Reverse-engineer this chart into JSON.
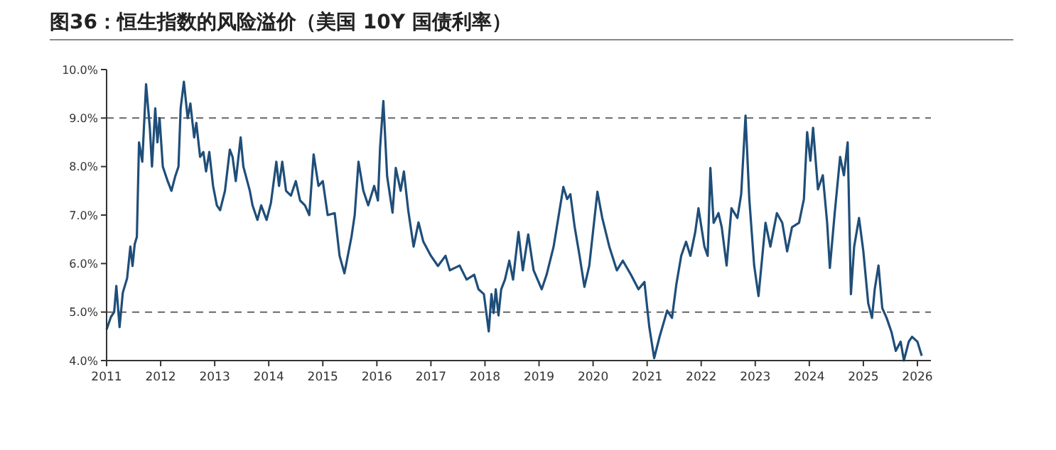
{
  "chart_data": {
    "type": "line",
    "title": "图36：恒生指数的风险溢价（美国 10Y 国债利率）",
    "series": [
      {
        "color": "#1f4e79",
        "x": [
          2011.0,
          2011.08,
          2011.14,
          2011.18,
          2011.24,
          2011.3,
          2011.38,
          2011.44,
          2011.48,
          2011.52,
          2011.56,
          2011.6,
          2011.66,
          2011.73,
          2011.8,
          2011.84,
          2011.9,
          2011.94,
          2011.98,
          2012.04,
          2012.13,
          2012.2,
          2012.27,
          2012.33,
          2012.37,
          2012.43,
          2012.5,
          2012.55,
          2012.62,
          2012.66,
          2012.73,
          2012.79,
          2012.84,
          2012.9,
          2012.97,
          2013.04,
          2013.1,
          2013.19,
          2013.28,
          2013.33,
          2013.39,
          2013.48,
          2013.53,
          2013.65,
          2013.7,
          2013.79,
          2013.86,
          2013.96,
          2014.04,
          2014.14,
          2014.19,
          2014.25,
          2014.32,
          2014.41,
          2014.5,
          2014.58,
          2014.67,
          2014.75,
          2014.83,
          2014.92,
          2015.0,
          2015.09,
          2015.22,
          2015.31,
          2015.4,
          2015.53,
          2015.59,
          2015.66,
          2015.75,
          2015.84,
          2015.95,
          2016.02,
          2016.06,
          2016.12,
          2016.19,
          2016.29,
          2016.35,
          2016.44,
          2016.5,
          2016.58,
          2016.68,
          2016.77,
          2016.86,
          2017.0,
          2017.13,
          2017.27,
          2017.35,
          2017.53,
          2017.66,
          2017.8,
          2017.88,
          2017.98,
          2018.07,
          2018.12,
          2018.16,
          2018.2,
          2018.25,
          2018.3,
          2018.37,
          2018.45,
          2018.52,
          2018.62,
          2018.7,
          2018.8,
          2018.9,
          2019.05,
          2019.14,
          2019.27,
          2019.45,
          2019.52,
          2019.58,
          2019.66,
          2019.75,
          2019.84,
          2019.93,
          2020.08,
          2020.17,
          2020.3,
          2020.44,
          2020.55,
          2020.7,
          2020.84,
          2020.95,
          2021.04,
          2021.13,
          2021.23,
          2021.37,
          2021.46,
          2021.54,
          2021.63,
          2021.72,
          2021.8,
          2021.89,
          2021.95,
          2022.06,
          2022.12,
          2022.17,
          2022.23,
          2022.32,
          2022.38,
          2022.47,
          2022.56,
          2022.67,
          2022.74,
          2022.82,
          2022.89,
          2022.98,
          2023.06,
          2023.19,
          2023.28,
          2023.4,
          2023.5,
          2023.59,
          2023.68,
          2023.81,
          2023.9,
          2023.96,
          2024.02,
          2024.07,
          2024.16,
          2024.25,
          2024.33,
          2024.38,
          2024.47,
          2024.57,
          2024.64,
          2024.71,
          2024.77,
          2024.83,
          2024.92,
          2025.0,
          2025.09,
          2025.16,
          2025.21,
          2025.28,
          2025.35,
          2025.43,
          2025.52,
          2025.6,
          2025.69,
          2025.75,
          2025.84,
          2025.9,
          2026.0,
          2026.08
        ],
        "values": [
          4.64,
          4.9,
          5.0,
          5.54,
          4.69,
          5.4,
          5.7,
          6.35,
          5.95,
          6.4,
          6.55,
          8.5,
          8.1,
          9.7,
          8.8,
          8.0,
          9.2,
          8.5,
          9.0,
          8.0,
          7.7,
          7.5,
          7.8,
          8.0,
          9.2,
          9.75,
          9.0,
          9.3,
          8.6,
          8.9,
          8.2,
          8.3,
          7.9,
          8.3,
          7.6,
          7.2,
          7.1,
          7.5,
          8.35,
          8.2,
          7.7,
          8.6,
          8.0,
          7.5,
          7.2,
          6.9,
          7.2,
          6.9,
          7.25,
          8.1,
          7.6,
          8.1,
          7.5,
          7.4,
          7.7,
          7.3,
          7.2,
          7.0,
          8.25,
          7.6,
          7.7,
          7.0,
          7.04,
          6.16,
          5.8,
          6.55,
          7.0,
          8.1,
          7.5,
          7.2,
          7.6,
          7.3,
          8.4,
          9.35,
          7.8,
          7.05,
          7.97,
          7.5,
          7.9,
          7.1,
          6.35,
          6.85,
          6.45,
          6.16,
          5.95,
          6.16,
          5.86,
          5.96,
          5.67,
          5.77,
          5.47,
          5.37,
          4.6,
          5.37,
          4.98,
          5.47,
          4.93,
          5.47,
          5.67,
          6.06,
          5.67,
          6.65,
          5.86,
          6.6,
          5.86,
          5.47,
          5.77,
          6.35,
          7.58,
          7.33,
          7.43,
          6.75,
          6.16,
          5.52,
          5.96,
          7.48,
          6.94,
          6.35,
          5.86,
          6.06,
          5.77,
          5.47,
          5.62,
          4.69,
          4.05,
          4.49,
          5.03,
          4.88,
          5.57,
          6.16,
          6.45,
          6.16,
          6.65,
          7.14,
          6.35,
          6.16,
          7.97,
          6.84,
          7.04,
          6.75,
          5.96,
          7.14,
          6.94,
          7.43,
          9.05,
          7.33,
          5.96,
          5.33,
          6.84,
          6.35,
          7.04,
          6.84,
          6.25,
          6.75,
          6.84,
          7.33,
          8.71,
          8.12,
          8.8,
          7.53,
          7.82,
          6.84,
          5.91,
          7.04,
          8.2,
          7.82,
          8.5,
          5.37,
          6.35,
          6.94,
          6.25,
          5.18,
          4.88,
          5.47,
          5.96,
          5.08,
          4.88,
          4.59,
          4.2,
          4.39,
          4.0,
          4.39,
          4.49,
          4.39,
          4.1
        ]
      }
    ],
    "xlim": [
      2011,
      2026.25
    ],
    "xticks": [
      2011,
      2012,
      2013,
      2014,
      2015,
      2016,
      2017,
      2018,
      2019,
      2020,
      2021,
      2022,
      2023,
      2024,
      2025,
      2026
    ],
    "ylim": [
      4,
      10
    ],
    "yticks": [
      {
        "value": 4,
        "label": "4.0%"
      },
      {
        "value": 5,
        "label": "5.0%"
      },
      {
        "value": 6,
        "label": "6.0%"
      },
      {
        "value": 7,
        "label": "7.0%"
      },
      {
        "value": 8,
        "label": "8.0%"
      },
      {
        "value": 9,
        "label": "9.0%"
      },
      {
        "value": 10,
        "label": "10.0%"
      }
    ],
    "ref_lines": [
      {
        "axis": "y",
        "value": 9,
        "color": "#666666",
        "line_style": "dashed"
      },
      {
        "axis": "y",
        "value": 5,
        "color": "#666666",
        "line_style": "dashed"
      }
    ],
    "grid": false
  }
}
